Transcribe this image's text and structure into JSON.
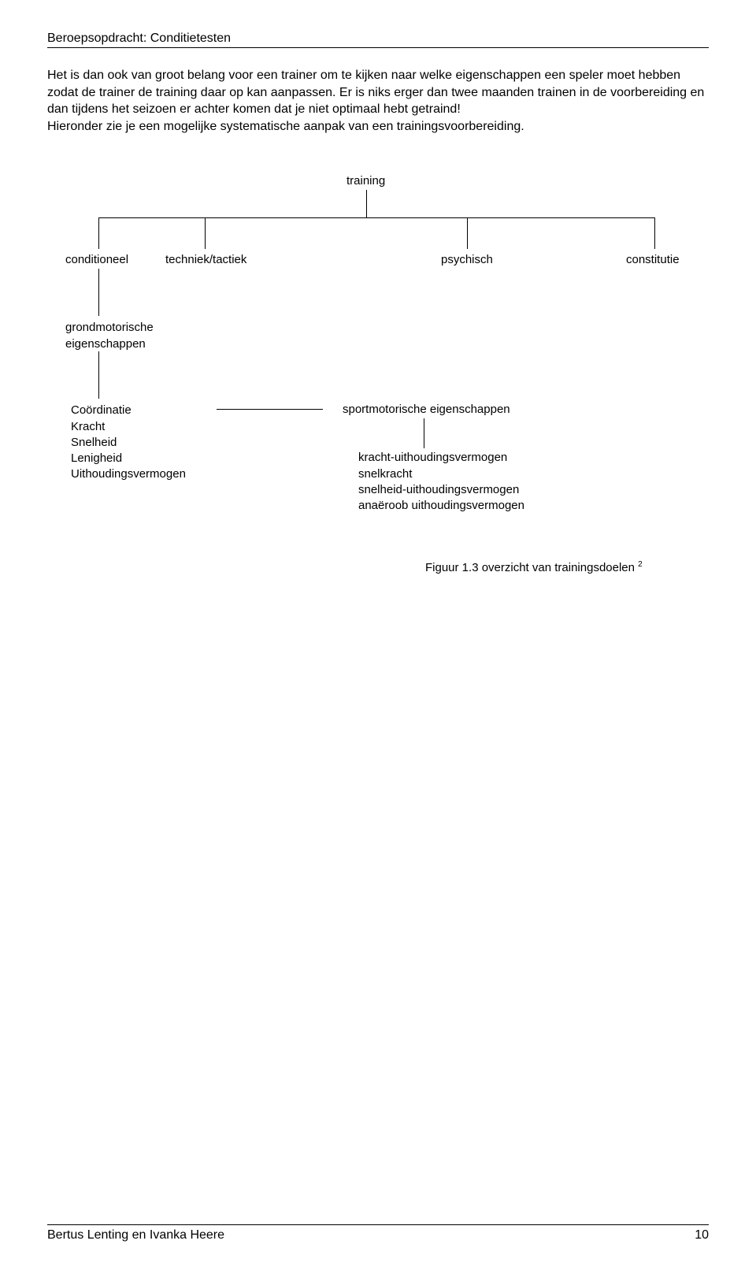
{
  "header": {
    "title": "Beroepsopdracht: Conditietesten"
  },
  "paragraph": "Het is dan ook van groot belang voor een trainer om te kijken naar welke eigenschappen een speler moet hebben zodat de trainer de training daar op kan aanpassen. Er is niks erger dan twee maanden trainen in de voorbereiding en dan tijdens het seizoen er achter komen dat je niet optimaal hebt getraind!\nHieronder zie je een mogelijke systematische aanpak van een trainingsvoorbereiding.",
  "diagram": {
    "root": "training",
    "level1": {
      "n1": "conditioneel",
      "n2": "techniek/tactiek",
      "n3": "psychisch",
      "n4": "constitutie"
    },
    "level2": "grondmotorische\neigenschappen",
    "level3_left": [
      "Coördinatie",
      "Kracht",
      "Snelheid",
      "Lenigheid",
      "Uithoudingsvermogen"
    ],
    "level3_right_head": "sportmotorische eigenschappen",
    "level3_right_list": [
      "kracht-uithoudingsvermogen",
      "snelkracht",
      "snelheid-uithoudingsvermogen",
      "anaëroob uithoudingsvermogen"
    ]
  },
  "caption": {
    "text": "Figuur 1.3 overzicht van trainingsdoelen",
    "sup": "2"
  },
  "footer": {
    "authors": "Bertus Lenting en Ivanka Heere",
    "page": "10"
  },
  "colors": {
    "text": "#000000",
    "bg": "#ffffff",
    "line": "#000000"
  }
}
